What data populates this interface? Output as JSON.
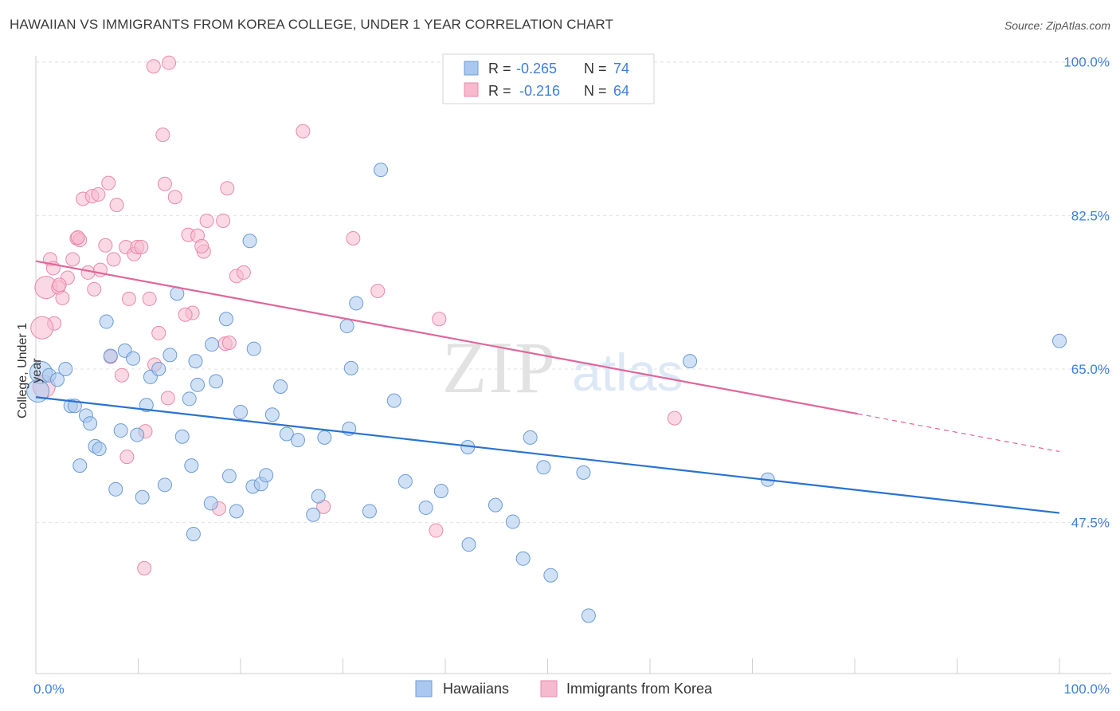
{
  "title": "HAWAIIAN VS IMMIGRANTS FROM KOREA COLLEGE, UNDER 1 YEAR CORRELATION CHART",
  "source": "Source: ZipAtlas.com",
  "watermark": {
    "zip": "ZIP",
    "atlas": "atlas"
  },
  "colors": {
    "blue_fill": "#aac8ef",
    "blue_stroke": "#6b9bd6",
    "blue_line": "#2a72d0",
    "pink_fill": "#f6b9cd",
    "pink_stroke": "#e98aa9",
    "pink_line": "#e0669a",
    "tick_text": "#3f7fd6",
    "grid": "#e3e3e3"
  },
  "legend": {
    "r_label": "R =",
    "n_label": "N =",
    "rows": [
      {
        "series": "blue",
        "r": "-0.265",
        "n": "74"
      },
      {
        "series": "pink",
        "r": "-0.216",
        "n": "64"
      }
    ]
  },
  "bottom_legend": [
    {
      "series": "blue",
      "label": "Hawaiians"
    },
    {
      "series": "pink",
      "label": "Immigrants from Korea"
    }
  ],
  "chart_data": {
    "type": "scatter",
    "title": "HAWAIIAN VS IMMIGRANTS FROM KOREA COLLEGE, UNDER 1 YEAR CORRELATION CHART",
    "xlabel": "",
    "ylabel": "College, Under 1 year",
    "xlim": [
      0,
      100
    ],
    "ylim": [
      30.3,
      100.7
    ],
    "x_tick_labels": [
      "0.0%",
      "100.0%"
    ],
    "y_ticks": [
      47.5,
      65.0,
      82.5,
      100.0
    ],
    "y_tick_labels": [
      "47.5%",
      "65.0%",
      "82.5%",
      "100.0%"
    ],
    "grid": true,
    "legend_position": "top-center",
    "series": [
      {
        "name": "Hawaiians",
        "color": "blue",
        "trend": {
          "x": [
            0,
            100
          ],
          "y": [
            61.8,
            48.6
          ]
        },
        "points": [
          [
            0.5,
            64.6
          ],
          [
            1.3,
            64.3
          ],
          [
            2.1,
            63.8
          ],
          [
            2.9,
            65.0
          ],
          [
            3.4,
            60.8
          ],
          [
            3.8,
            60.8
          ],
          [
            4.9,
            59.7
          ],
          [
            5.3,
            58.8
          ],
          [
            5.8,
            56.2
          ],
          [
            6.2,
            55.9
          ],
          [
            4.3,
            54.0
          ],
          [
            6.9,
            70.4
          ],
          [
            7.3,
            66.5
          ],
          [
            7.8,
            51.3
          ],
          [
            8.3,
            58.0
          ],
          [
            8.7,
            67.1
          ],
          [
            9.5,
            66.2
          ],
          [
            9.9,
            57.5
          ],
          [
            10.4,
            50.4
          ],
          [
            10.8,
            60.9
          ],
          [
            11.2,
            64.1
          ],
          [
            12.0,
            65.0
          ],
          [
            12.6,
            51.8
          ],
          [
            13.1,
            66.6
          ],
          [
            13.8,
            73.6
          ],
          [
            14.3,
            57.3
          ],
          [
            15.2,
            54.0
          ],
          [
            15.6,
            65.9
          ],
          [
            15.8,
            63.2
          ],
          [
            15.0,
            61.6
          ],
          [
            17.1,
            49.7
          ],
          [
            17.6,
            63.6
          ],
          [
            18.6,
            70.7
          ],
          [
            18.9,
            52.8
          ],
          [
            19.6,
            48.8
          ],
          [
            20.9,
            79.6
          ],
          [
            21.3,
            67.3
          ],
          [
            21.2,
            51.6
          ],
          [
            22.0,
            51.9
          ],
          [
            22.5,
            52.9
          ],
          [
            23.1,
            59.8
          ],
          [
            23.9,
            63.0
          ],
          [
            24.5,
            57.6
          ],
          [
            25.6,
            56.9
          ],
          [
            27.1,
            48.4
          ],
          [
            27.6,
            50.5
          ],
          [
            28.2,
            57.2
          ],
          [
            30.4,
            69.9
          ],
          [
            30.8,
            65.1
          ],
          [
            30.6,
            58.2
          ],
          [
            31.3,
            72.5
          ],
          [
            32.6,
            48.8
          ],
          [
            33.7,
            87.7
          ],
          [
            35.0,
            61.4
          ],
          [
            36.1,
            52.2
          ],
          [
            38.1,
            49.2
          ],
          [
            39.6,
            51.1
          ],
          [
            42.2,
            56.1
          ],
          [
            42.3,
            45.0
          ],
          [
            44.9,
            49.5
          ],
          [
            46.6,
            47.6
          ],
          [
            47.6,
            43.4
          ],
          [
            48.3,
            57.2
          ],
          [
            49.6,
            53.8
          ],
          [
            50.3,
            41.5
          ],
          [
            53.5,
            53.2
          ],
          [
            54.0,
            36.9
          ],
          [
            63.9,
            65.9
          ],
          [
            71.5,
            52.4
          ],
          [
            100.0,
            68.2
          ],
          [
            15.4,
            46.2
          ],
          [
            17.2,
            67.8
          ],
          [
            20.0,
            60.1
          ],
          [
            0.2,
            62.5
          ]
        ]
      },
      {
        "name": "Immigrants from Korea",
        "color": "pink",
        "trend": {
          "x": [
            0,
            80.3
          ],
          "y": [
            77.3,
            59.9
          ]
        },
        "trend_dashed": {
          "x": [
            80.3,
            100
          ],
          "y": [
            59.9,
            55.6
          ]
        },
        "points": [
          [
            1.0,
            74.3
          ],
          [
            1.4,
            77.5
          ],
          [
            1.7,
            76.5
          ],
          [
            2.2,
            74.3
          ],
          [
            2.6,
            73.1
          ],
          [
            3.1,
            75.4
          ],
          [
            3.6,
            77.5
          ],
          [
            1.8,
            70.2
          ],
          [
            4.0,
            79.9
          ],
          [
            4.3,
            79.7
          ],
          [
            4.6,
            84.4
          ],
          [
            5.5,
            84.7
          ],
          [
            6.1,
            84.9
          ],
          [
            5.1,
            76.0
          ],
          [
            5.7,
            74.1
          ],
          [
            6.3,
            76.3
          ],
          [
            6.8,
            79.1
          ],
          [
            7.1,
            86.2
          ],
          [
            7.6,
            77.5
          ],
          [
            7.9,
            83.7
          ],
          [
            7.3,
            66.4
          ],
          [
            8.4,
            64.3
          ],
          [
            8.8,
            78.9
          ],
          [
            9.1,
            73.0
          ],
          [
            9.6,
            78.1
          ],
          [
            9.9,
            78.9
          ],
          [
            10.3,
            78.9
          ],
          [
            10.7,
            57.9
          ],
          [
            11.1,
            73.0
          ],
          [
            8.9,
            55.0
          ],
          [
            11.6,
            65.5
          ],
          [
            12.0,
            69.1
          ],
          [
            12.6,
            86.1
          ],
          [
            12.9,
            61.7
          ],
          [
            13.6,
            84.6
          ],
          [
            14.9,
            80.3
          ],
          [
            15.3,
            71.4
          ],
          [
            14.6,
            71.2
          ],
          [
            15.8,
            80.2
          ],
          [
            16.4,
            78.4
          ],
          [
            16.2,
            79.0
          ],
          [
            16.7,
            81.9
          ],
          [
            17.9,
            49.1
          ],
          [
            18.5,
            67.9
          ],
          [
            18.9,
            68.0
          ],
          [
            19.6,
            75.6
          ],
          [
            18.7,
            85.6
          ],
          [
            18.3,
            81.9
          ],
          [
            20.3,
            76.0
          ],
          [
            12.4,
            91.7
          ],
          [
            11.5,
            99.5
          ],
          [
            13.0,
            99.9
          ],
          [
            26.1,
            92.1
          ],
          [
            28.1,
            49.3
          ],
          [
            31.0,
            79.9
          ],
          [
            33.4,
            73.9
          ],
          [
            39.4,
            70.7
          ],
          [
            39.1,
            46.6
          ],
          [
            62.4,
            59.4
          ],
          [
            0.6,
            69.7
          ],
          [
            10.6,
            42.3
          ],
          [
            4.1,
            80.0
          ],
          [
            2.3,
            74.6
          ],
          [
            0.8,
            63.0
          ]
        ]
      }
    ]
  }
}
